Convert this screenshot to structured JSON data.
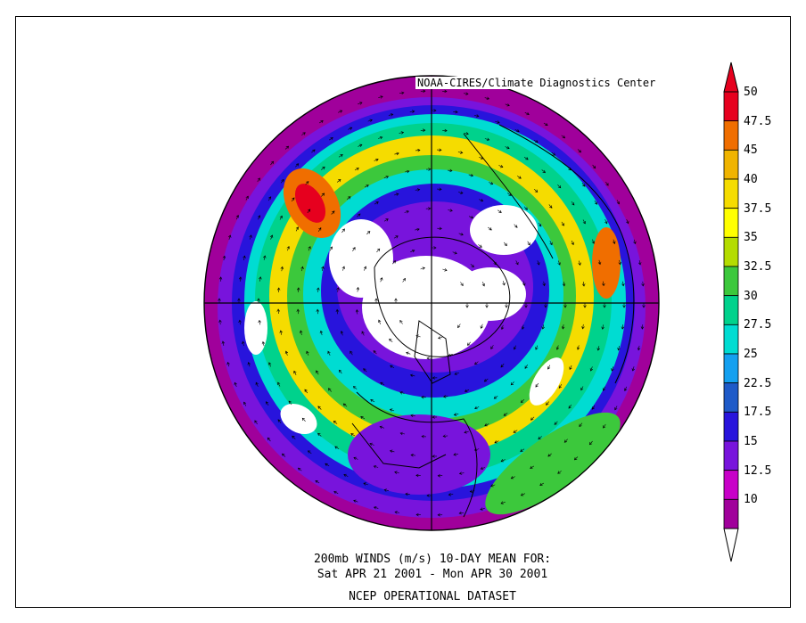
{
  "credit": "NOAA-CIRES/Climate Diagnostics Center",
  "caption": {
    "line1": "200mb WINDS (m/s)   10-DAY MEAN FOR:",
    "line2": "Sat APR 21 2001 - Mon APR 30 2001",
    "line3": "NCEP OPERATIONAL DATASET"
  },
  "projection": "north-polar-stereographic",
  "colorbar": {
    "labels": [
      "50",
      "47.5",
      "45",
      "40",
      "37.5",
      "35",
      "32.5",
      "30",
      "27.5",
      "25",
      "22.5",
      "17.5",
      "15",
      "12.5",
      "10"
    ],
    "colors": [
      "#e6001e",
      "#f06e00",
      "#f0b400",
      "#f5dc00",
      "#ffff00",
      "#b4dc00",
      "#3cc83c",
      "#00d28c",
      "#00dcd2",
      "#14a0f0",
      "#1e5ac8",
      "#2814dc",
      "#7814dc",
      "#c800c8",
      "#a0009b"
    ],
    "below_min_color": "#ffffff",
    "extends": "both"
  },
  "palette": {
    "frame": "#000000",
    "map_lines": "#000000",
    "calm": "#ffffff"
  }
}
